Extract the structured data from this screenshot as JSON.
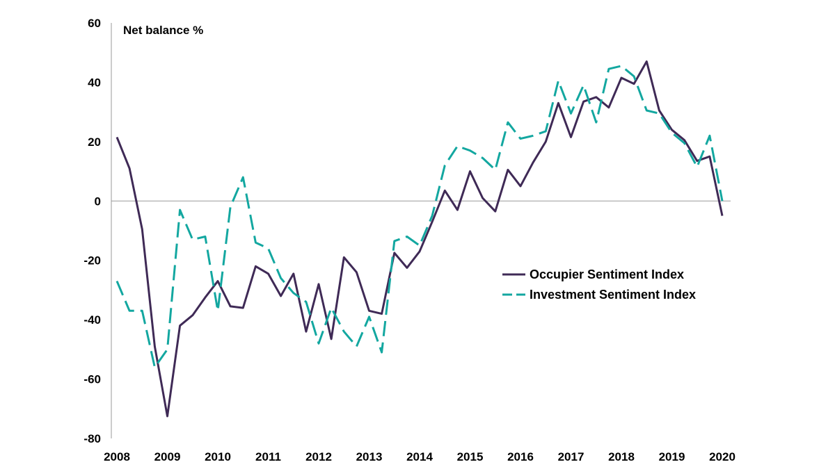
{
  "chart_data": {
    "type": "line",
    "ylabel": "Net balance %",
    "ylim": [
      -80,
      60
    ],
    "y_ticks": [
      60,
      40,
      20,
      0,
      -20,
      -40,
      -60,
      -80
    ],
    "xlim": [
      2008,
      2020.25
    ],
    "x_ticks": [
      "2008",
      "2009",
      "2010",
      "2011",
      "2012",
      "2013",
      "2014",
      "2015",
      "2016",
      "2017",
      "2018",
      "2019",
      "2020"
    ],
    "x": [
      2008.0,
      2008.25,
      2008.5,
      2008.75,
      2009.0,
      2009.25,
      2009.5,
      2009.75,
      2010.0,
      2010.25,
      2010.5,
      2010.75,
      2011.0,
      2011.25,
      2011.5,
      2011.75,
      2012.0,
      2012.25,
      2012.5,
      2012.75,
      2013.0,
      2013.25,
      2013.5,
      2013.75,
      2014.0,
      2014.25,
      2014.5,
      2014.75,
      2015.0,
      2015.25,
      2015.5,
      2015.75,
      2016.0,
      2016.25,
      2016.5,
      2016.75,
      2017.0,
      2017.25,
      2017.5,
      2017.75,
      2018.0,
      2018.25,
      2018.5,
      2018.75,
      2019.0,
      2019.25,
      2019.5,
      2019.75,
      2020.0
    ],
    "series": [
      {
        "name": "Occupier Sentiment Index",
        "color": "#3f2a56",
        "dash": "solid",
        "values": [
          21.5,
          11,
          -9.5,
          -49,
          -72.5,
          -42,
          -38.5,
          -32.5,
          -27,
          -35.5,
          -36,
          -22,
          -24.5,
          -32,
          -24.5,
          -44,
          -28,
          -46.5,
          -19,
          -24,
          -37,
          -38,
          -17.5,
          -22.5,
          -17,
          -7,
          3.5,
          -3,
          10,
          1,
          -3.5,
          10.5,
          5,
          13,
          20,
          33,
          21.5,
          33.5,
          35,
          31.5,
          41.5,
          39.5,
          47,
          30.5,
          24,
          20.5,
          13.5,
          15,
          -5
        ]
      },
      {
        "name": "Investment Sentiment Index",
        "color": "#13a7a0",
        "dash": "dashed",
        "values": [
          -27,
          -37,
          -37,
          -56,
          -50,
          -3,
          -13,
          -12,
          -37,
          -2,
          8,
          -14,
          -16,
          -26,
          -31,
          -34,
          -48,
          -36,
          -44,
          -49,
          -39,
          -51,
          -13.5,
          -12,
          -15,
          -5,
          12,
          18.5,
          17,
          14.5,
          10.5,
          26.5,
          21,
          22,
          23.5,
          40.5,
          29.5,
          39,
          26.5,
          44.5,
          45.5,
          42,
          30.5,
          29.5,
          23,
          19.5,
          11.5,
          22,
          0
        ]
      }
    ],
    "legend_position": "right-middle",
    "grid": false
  }
}
